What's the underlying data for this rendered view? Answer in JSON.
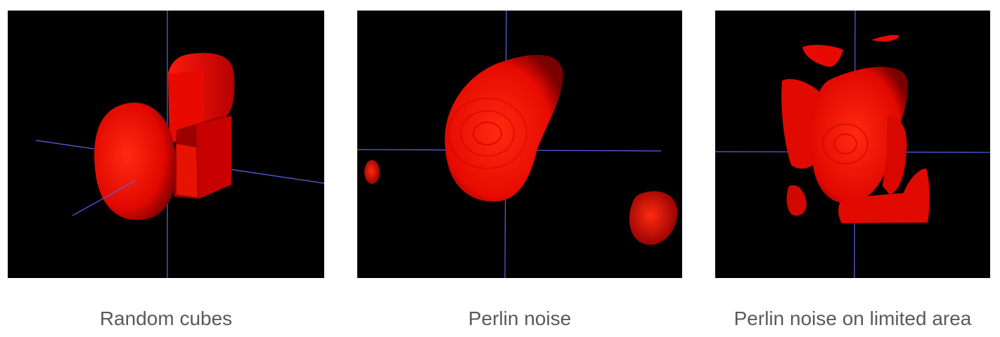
{
  "figures": [
    {
      "caption": "Random cubes"
    },
    {
      "caption": "Perlin noise"
    },
    {
      "caption": "Perlin noise on limited area"
    }
  ],
  "colors": {
    "background": "#000000",
    "surface": "#ff1a0d",
    "surface_shadow": "#8a0000",
    "axis": "#5a64e6",
    "caption_text": "#5a5a5a"
  }
}
